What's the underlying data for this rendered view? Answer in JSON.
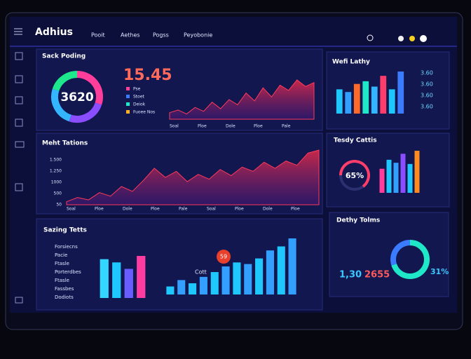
{
  "header": {
    "logo": "Adhius",
    "nav": [
      "Pooit",
      "Aethes",
      "Pogss",
      "Peyobonie"
    ]
  },
  "sales": {
    "title": "Sack Poding",
    "donut_center": "3620",
    "donut": [
      30,
      25,
      25,
      20
    ],
    "big_value": "15.45",
    "legend": [
      "Pse",
      "Stoet",
      "Deiok",
      "Fuoee Nos"
    ],
    "area": [
      10,
      14,
      8,
      18,
      12,
      26,
      16,
      30,
      22,
      40,
      28,
      48,
      34,
      52,
      44,
      60,
      50,
      56
    ],
    "x_labels": [
      "Soal",
      "Ploe",
      "Dole",
      "Ploe",
      "Pale"
    ]
  },
  "weekly": {
    "title": "Wefi Lathy",
    "bars": [
      45,
      40,
      55,
      60,
      50,
      70,
      45,
      78
    ],
    "side_values": [
      "3.60",
      "3.60",
      "3.60",
      "3.60"
    ]
  },
  "metrics": {
    "title": "Meht Tations",
    "y_labels": [
      "1.500",
      "1.250",
      "1000",
      "500",
      "50"
    ],
    "area": [
      5,
      12,
      8,
      20,
      14,
      30,
      22,
      40,
      60,
      45,
      55,
      38,
      50,
      42,
      58,
      48,
      62,
      55,
      70,
      60,
      72,
      65,
      85,
      90
    ],
    "x_labels": [
      "Soal",
      "Ploe",
      "Dole",
      "Ploe",
      "Pale",
      "Soal",
      "Ploe",
      "Dole",
      "Ploe"
    ]
  },
  "trends": {
    "title": "Tesdy Cattis",
    "gauge": "65%",
    "bars": [
      40,
      55,
      50,
      65,
      48,
      70
    ]
  },
  "savings": {
    "title": "Sazing Tetts",
    "list": [
      "Forsiecns",
      "Pacie",
      "Ftasle",
      "Porterdbes",
      "Ftasle",
      "Fassbes",
      "Dodiots"
    ],
    "bars_a": [
      60,
      55,
      45,
      65
    ],
    "bars_b": [
      10,
      18,
      14,
      22,
      28,
      35,
      40,
      38,
      45,
      55,
      60,
      70
    ],
    "badge": "59",
    "label": "Cott"
  },
  "daily": {
    "title": "Dethy Tolms",
    "value_a": "1,30",
    "value_b": "2655",
    "percent": "31%",
    "donut": [
      70,
      30
    ]
  }
}
